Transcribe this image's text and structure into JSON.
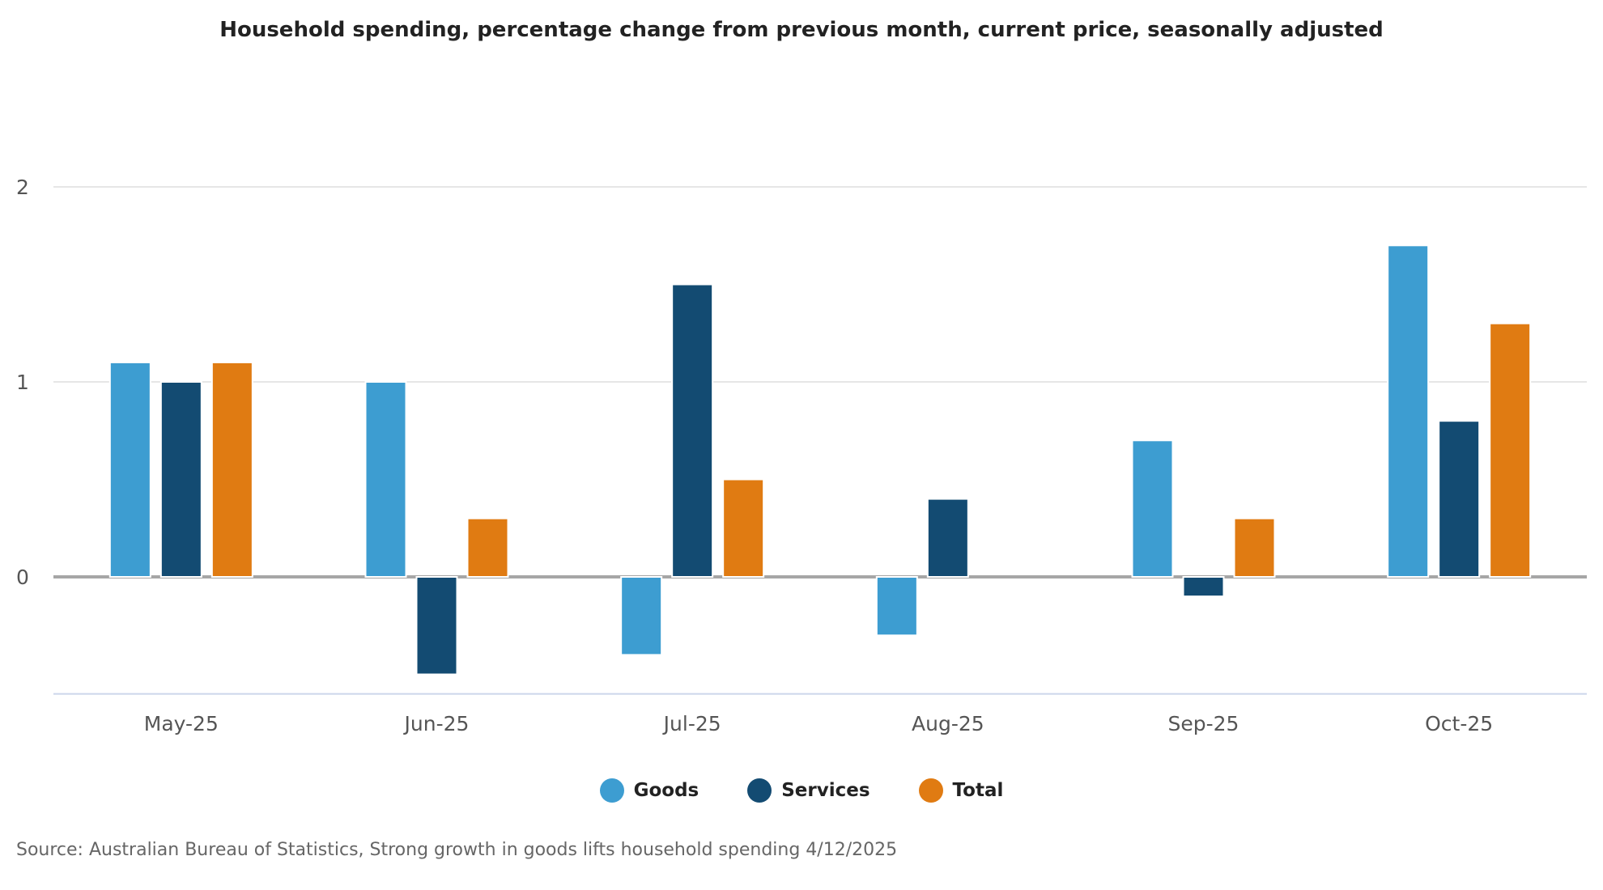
{
  "chart_data": {
    "type": "bar",
    "title": "Household spending, percentage change from previous month, current price, seasonally adjusted",
    "categories": [
      "May-25",
      "Jun-25",
      "Jul-25",
      "Aug-25",
      "Sep-25",
      "Oct-25"
    ],
    "series": [
      {
        "name": "Goods",
        "color": "#3d9dd1",
        "values": [
          1.1,
          1.0,
          -0.4,
          -0.3,
          0.7,
          1.7
        ]
      },
      {
        "name": "Services",
        "color": "#134b72",
        "values": [
          1.0,
          -0.5,
          1.5,
          0.4,
          -0.1,
          0.8
        ]
      },
      {
        "name": "Total",
        "color": "#e07b12",
        "values": [
          1.1,
          0.3,
          0.5,
          0.0,
          0.3,
          1.3
        ]
      }
    ],
    "yticks": [
      0,
      1,
      2
    ],
    "ylim": [
      -0.6,
      2
    ],
    "grid": true,
    "legend_position": "bottom",
    "xlabel": "",
    "ylabel": ""
  },
  "source": "Source: Australian Bureau of Statistics, Strong growth in goods lifts household spending 4/12/2025"
}
